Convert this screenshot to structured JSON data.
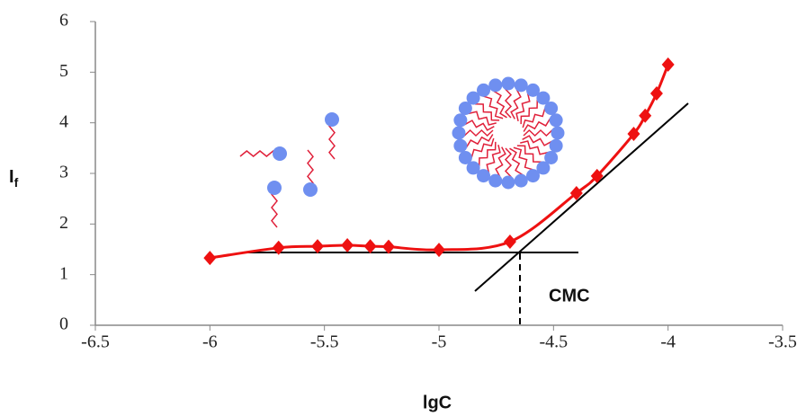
{
  "chart_data": {
    "type": "scatter",
    "x": [
      -6,
      -5.7,
      -5.53,
      -5.4,
      -5.3,
      -5.22,
      -5,
      -4.69,
      -4.4,
      -4.31,
      -4.15,
      -4.1,
      -4.05,
      -4
    ],
    "series": [
      {
        "color": "#ee1111",
        "values": [
          1.33,
          1.53,
          1.56,
          1.58,
          1.56,
          1.55,
          1.49,
          1.65,
          2.61,
          2.95,
          3.78,
          4.14,
          4.58,
          5.15
        ]
      }
    ],
    "xlim": [
      -6.5,
      -3.5
    ],
    "xticks": [
      -6.5,
      -6,
      -5.5,
      -5,
      -4.5,
      -4,
      -3.5
    ],
    "ylim": [
      0,
      6
    ],
    "yticks": [
      0,
      1,
      2,
      3,
      4,
      5,
      6
    ],
    "xlabel": "lgC",
    "ylabel": "I",
    "ylabel_subscript": "f",
    "annotation": "CMC",
    "annotation_color": "#ee1111",
    "grid": false
  }
}
